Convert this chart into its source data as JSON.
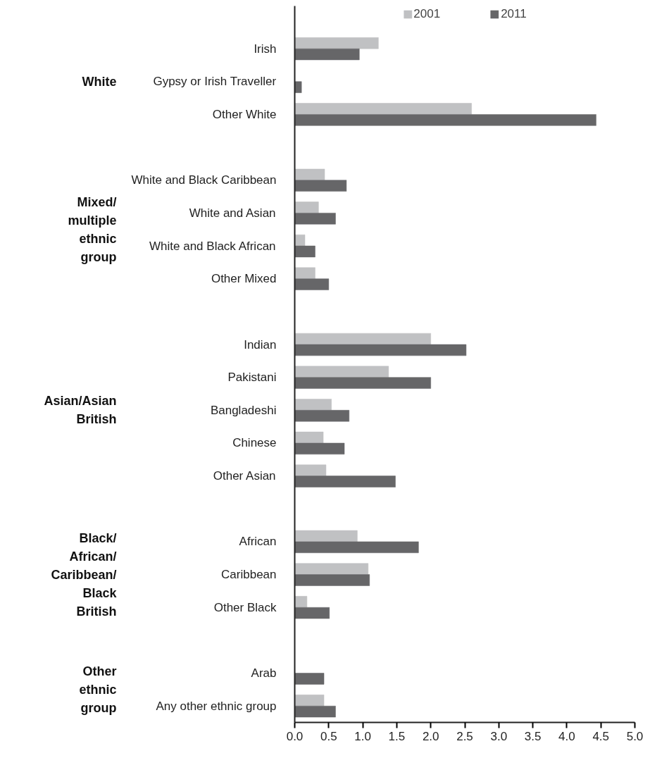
{
  "chart_data": {
    "type": "bar",
    "orientation": "horizontal",
    "categories": [
      "Irish",
      "Gypsy or Irish Traveller",
      "Other White",
      null,
      "White and Black Caribbean",
      "White and Asian",
      "White and Black African",
      "Other Mixed",
      null,
      "Indian",
      "Pakistani",
      "Bangladeshi",
      "Chinese",
      "Other Asian",
      null,
      "African",
      "Caribbean",
      "Other Black",
      null,
      "Arab",
      "Any other ethnic group"
    ],
    "series": [
      {
        "name": "2001",
        "color": "#c0c1c3",
        "values": [
          1.23,
          null,
          2.6,
          null,
          0.44,
          0.35,
          0.15,
          0.3,
          null,
          2.0,
          1.38,
          0.54,
          0.42,
          0.46,
          null,
          0.92,
          1.08,
          0.18,
          null,
          null,
          0.43
        ]
      },
      {
        "name": "2011",
        "color": "#666668",
        "values": [
          0.95,
          0.1,
          4.43,
          null,
          0.76,
          0.6,
          0.3,
          0.5,
          null,
          2.52,
          2.0,
          0.8,
          0.73,
          1.48,
          null,
          1.82,
          1.1,
          0.51,
          null,
          0.43,
          0.6
        ]
      }
    ],
    "annotations": [
      "White",
      "Mixed/multiple ethnic group",
      "Asian/Asian British",
      "Black/African/Caribbean/Black British",
      "Other ethnic group"
    ],
    "xlim": [
      0,
      5
    ],
    "xticks": [
      {
        "value": 0,
        "label": "0.0"
      },
      0.5,
      {
        "value": 1,
        "label": "1.0"
      },
      1.5,
      {
        "value": 2,
        "label": "2.0"
      },
      2.5,
      {
        "value": 3,
        "label": "3.0"
      },
      3.5,
      {
        "value": 4,
        "label": "4.0"
      },
      4.5,
      {
        "value": 5,
        "label": "5.0"
      }
    ],
    "grid": false,
    "legend": "top"
  }
}
